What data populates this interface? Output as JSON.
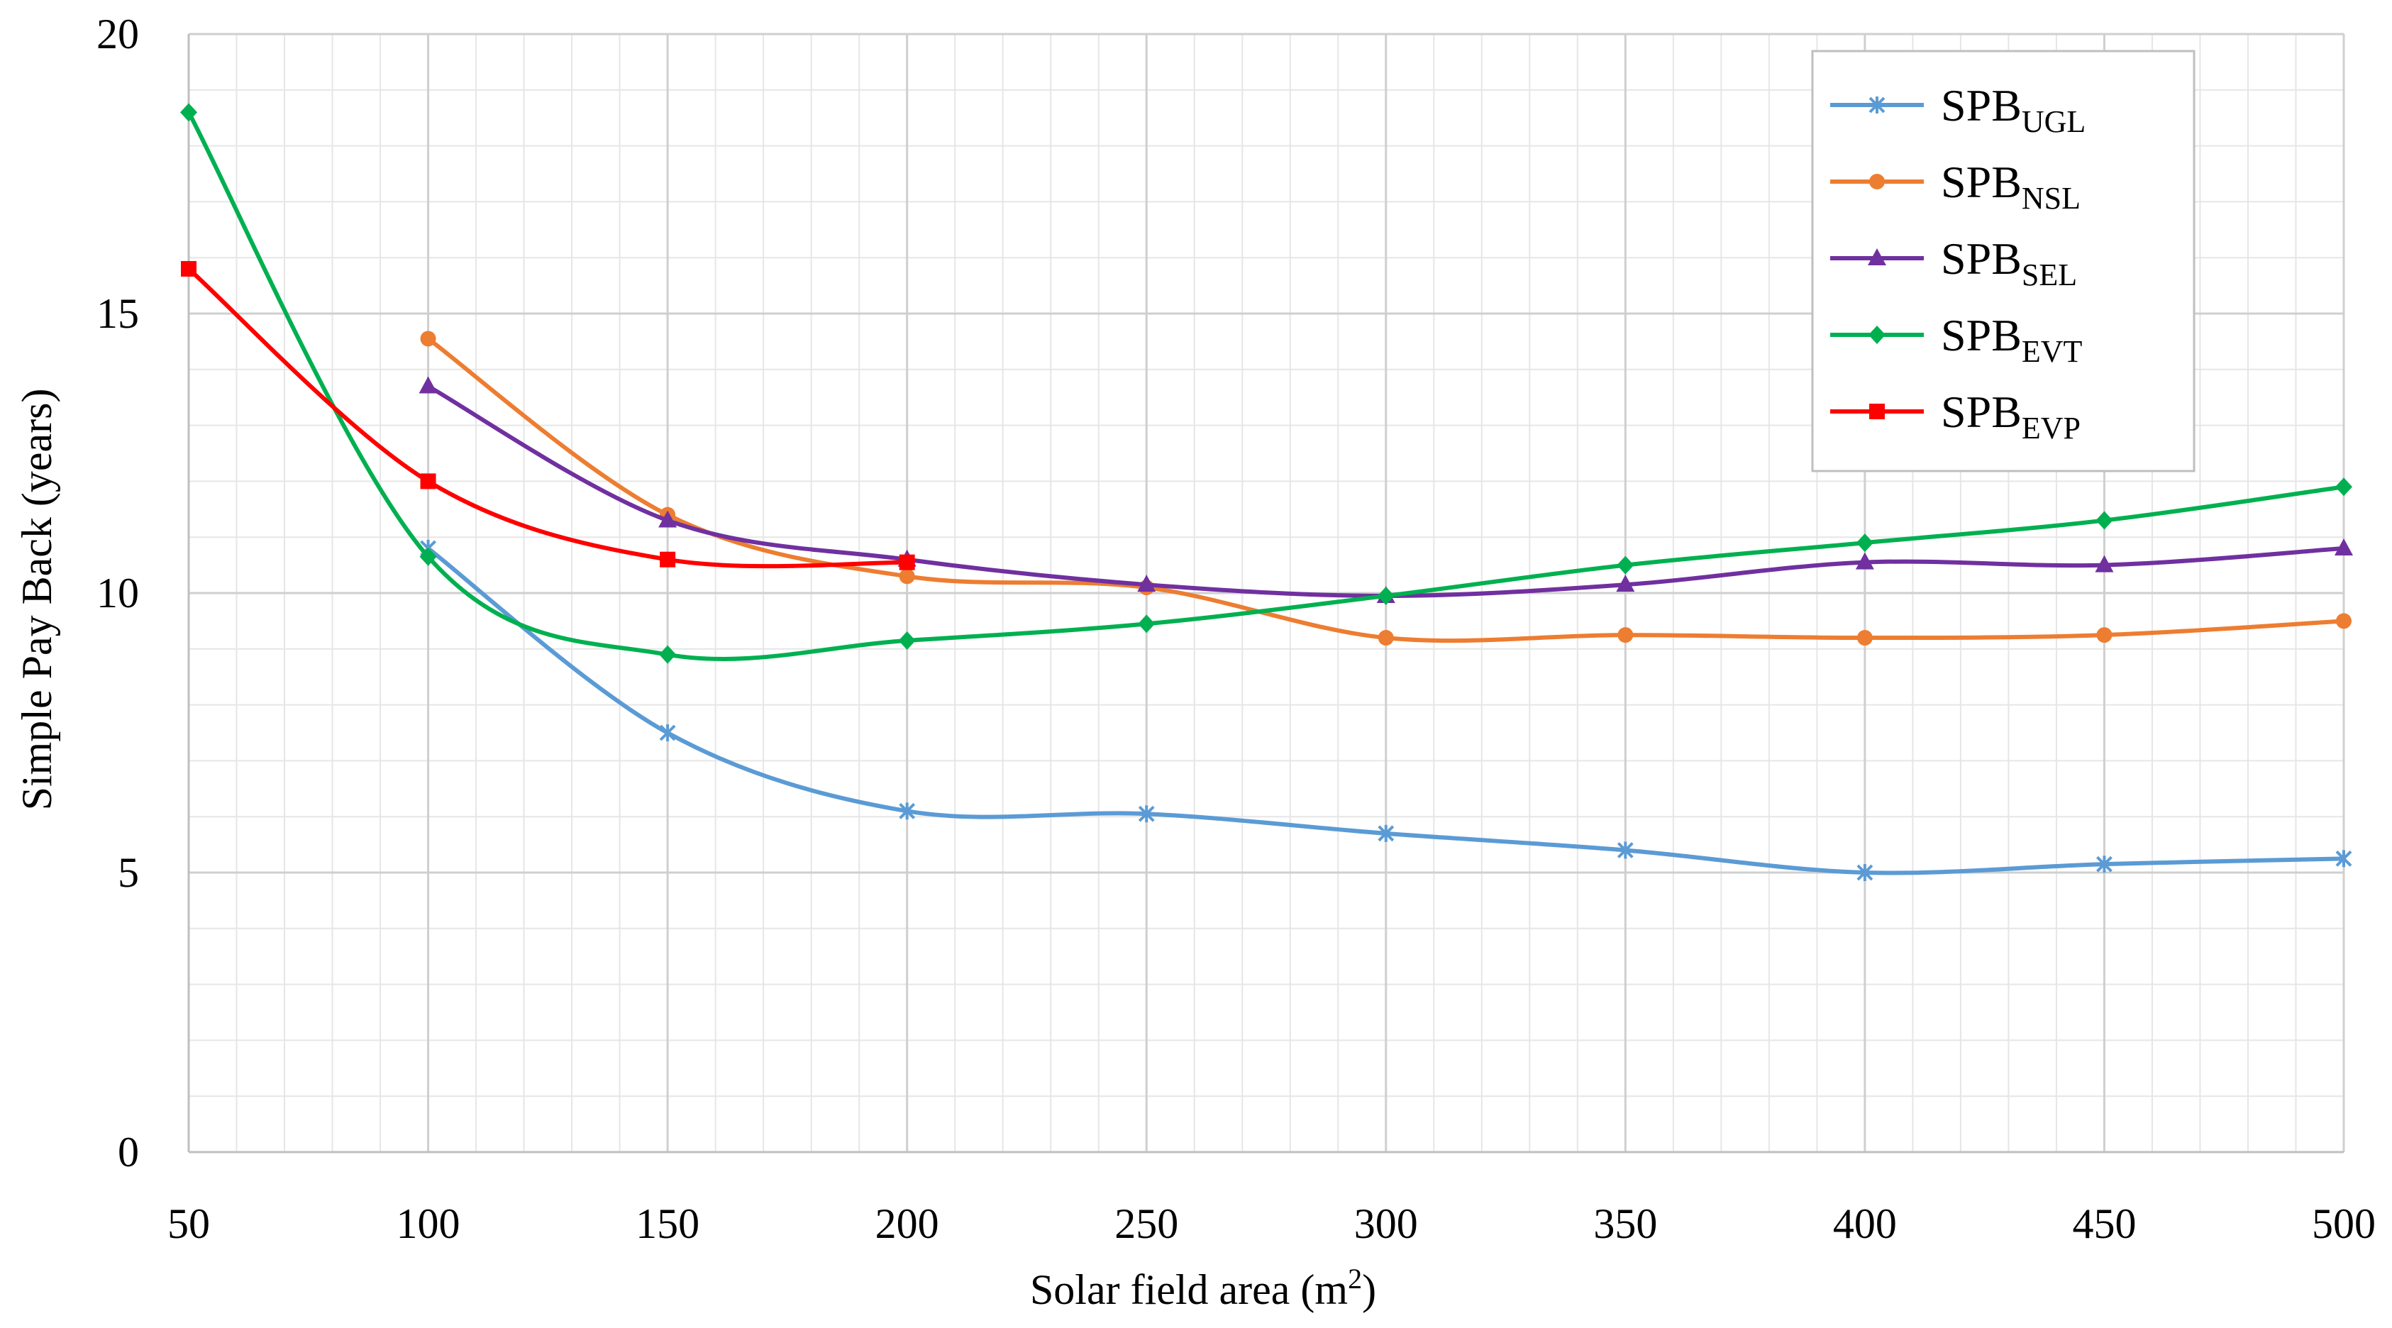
{
  "chart_data": {
    "type": "line",
    "title": "",
    "xlabel": "Solar field area (m",
    "xlabel_sup": "2",
    "xlabel_suffix": ")",
    "ylabel": "Simple Pay Back (years)",
    "xlim": [
      50,
      500
    ],
    "ylim": [
      0,
      20
    ],
    "x_ticks": [
      50,
      100,
      150,
      200,
      250,
      300,
      350,
      400,
      450,
      500
    ],
    "y_ticks": [
      0,
      5,
      10,
      15,
      20
    ],
    "x_minor_step": 10,
    "y_minor_step": 1,
    "grid": true,
    "legend_position": "top-right",
    "series": [
      {
        "name": "SPB",
        "subscript": "UGL",
        "color": "#5B9BD5",
        "marker": "star",
        "x": [
          100,
          150,
          200,
          250,
          300,
          350,
          400,
          450,
          500
        ],
        "values": [
          10.8,
          7.5,
          6.1,
          6.05,
          5.7,
          5.4,
          5.0,
          5.15,
          5.25
        ]
      },
      {
        "name": "SPB",
        "subscript": "NSL",
        "color": "#ED7D31",
        "marker": "circle",
        "x": [
          100,
          150,
          200,
          250,
          300,
          350,
          400,
          450,
          500
        ],
        "values": [
          14.55,
          11.4,
          10.3,
          10.1,
          9.2,
          9.25,
          9.2,
          9.25,
          9.5
        ]
      },
      {
        "name": "SPB",
        "subscript": "SEL",
        "color": "#7030A0",
        "marker": "triangle",
        "x": [
          100,
          150,
          200,
          250,
          300,
          350,
          400,
          450,
          500
        ],
        "values": [
          13.7,
          11.3,
          10.6,
          10.15,
          9.95,
          10.15,
          10.55,
          10.5,
          10.8
        ]
      },
      {
        "name": "SPB",
        "subscript": "EVT",
        "color": "#00B050",
        "marker": "diamond",
        "x": [
          50,
          100,
          150,
          200,
          250,
          300,
          350,
          400,
          450,
          500
        ],
        "values": [
          18.6,
          10.65,
          8.9,
          9.15,
          9.45,
          9.95,
          10.5,
          10.9,
          11.3,
          11.9
        ]
      },
      {
        "name": "SPB",
        "subscript": "EVP",
        "color": "#FF0000",
        "marker": "square",
        "x": [
          50,
          100,
          150,
          200
        ],
        "values": [
          15.8,
          12.0,
          10.6,
          10.55
        ]
      }
    ]
  }
}
